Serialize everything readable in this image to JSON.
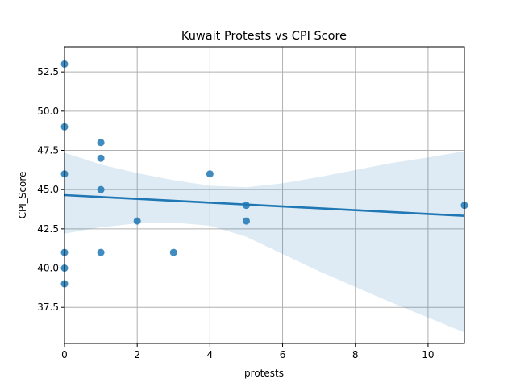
{
  "chart_data": {
    "type": "scatter",
    "title": "Kuwait Protests vs CPI Score",
    "xlabel": "protests",
    "ylabel": "CPI_Score",
    "xlim": [
      0,
      11
    ],
    "ylim": [
      35.2,
      54.1
    ],
    "xticks": [
      0,
      2,
      4,
      6,
      8,
      10
    ],
    "xtick_labels": [
      "0",
      "2",
      "4",
      "6",
      "8",
      "10"
    ],
    "yticks": [
      37.5,
      40.0,
      42.5,
      45.0,
      47.5,
      50.0,
      52.5
    ],
    "ytick_labels": [
      "37.5",
      "40.0",
      "42.5",
      "45.0",
      "47.5",
      "50.0",
      "52.5"
    ],
    "grid": true,
    "points": {
      "x": [
        0,
        0,
        0,
        0,
        0,
        0,
        1,
        1,
        1,
        1,
        2,
        3,
        4,
        5,
        5,
        11
      ],
      "y": [
        53,
        49,
        46,
        41,
        40,
        39,
        48,
        47,
        45,
        41,
        43,
        41,
        46,
        44,
        43,
        44
      ]
    },
    "regression": {
      "x": [
        0,
        11
      ],
      "y": [
        44.65,
        43.33
      ]
    },
    "confidence_band": {
      "x": [
        0,
        1,
        2,
        3,
        4,
        5,
        6,
        7,
        8,
        9,
        10,
        11
      ],
      "lower": [
        42.2,
        42.6,
        42.85,
        42.9,
        42.7,
        42.0,
        40.9,
        39.8,
        38.8,
        37.8,
        36.85,
        35.9
      ],
      "upper": [
        47.35,
        46.6,
        46.05,
        45.6,
        45.25,
        45.15,
        45.4,
        45.8,
        46.25,
        46.7,
        47.05,
        47.45
      ]
    },
    "colors": {
      "points": "#1f77b4",
      "line": "#1f77b4",
      "band": "#1f77b4",
      "grid": "#b0b0b0"
    }
  }
}
